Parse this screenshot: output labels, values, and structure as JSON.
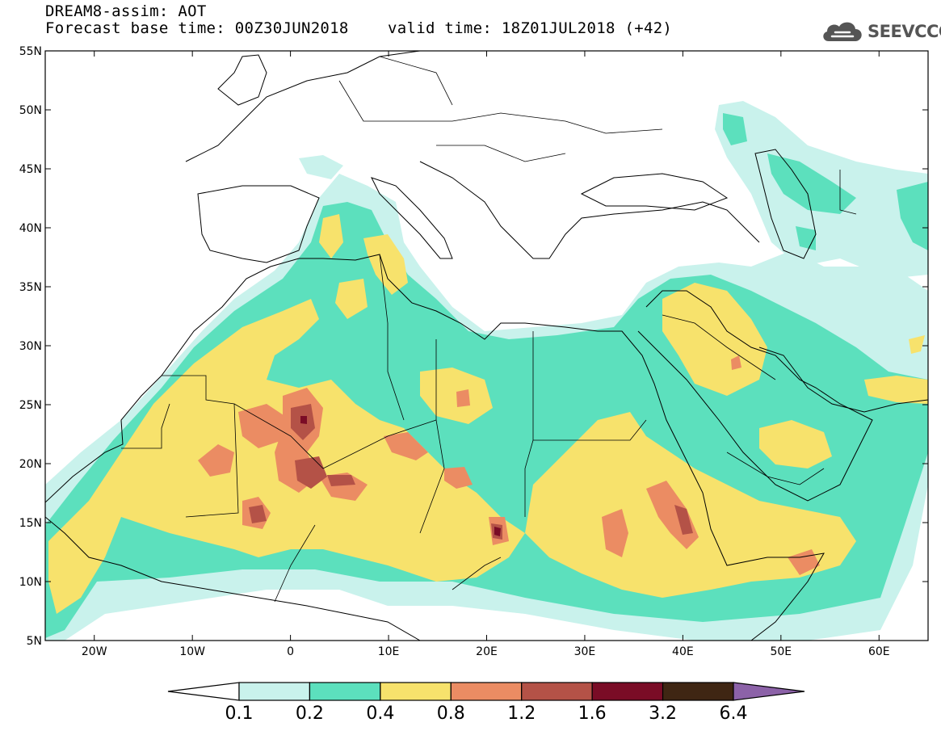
{
  "header": {
    "title": "DREAM8-assim: AOT",
    "base_time": "Forecast base time: 00Z30JUN2018",
    "valid_time": "valid time: 18Z01JUL2018 (+42)"
  },
  "logo": {
    "text": "SEEVCCC",
    "icon": "cloud-icon"
  },
  "map": {
    "lat_labels": [
      "55N",
      "50N",
      "45N",
      "40N",
      "35N",
      "30N",
      "25N",
      "20N",
      "15N",
      "10N",
      "5N"
    ],
    "lon_labels": [
      "20W",
      "10W",
      "0",
      "10E",
      "20E",
      "30E",
      "40E",
      "50E",
      "60E"
    ]
  },
  "colorbar": {
    "labels": [
      "0.1",
      "0.2",
      "0.4",
      "0.8",
      "1.2",
      "1.6",
      "3.2",
      "6.4"
    ],
    "colors": [
      "#ffffff",
      "#c9f2ec",
      "#5ce0bd",
      "#f7e26c",
      "#eb8c63",
      "#b45247",
      "#7a0c26",
      "#3f2613",
      "#8c62a8"
    ]
  },
  "palette": {
    "l1": "#c9f2ec",
    "l2": "#5ce0bd",
    "l3": "#f7e26c",
    "l4": "#eb8c63",
    "l5": "#b45247",
    "l6": "#7a0c26"
  }
}
